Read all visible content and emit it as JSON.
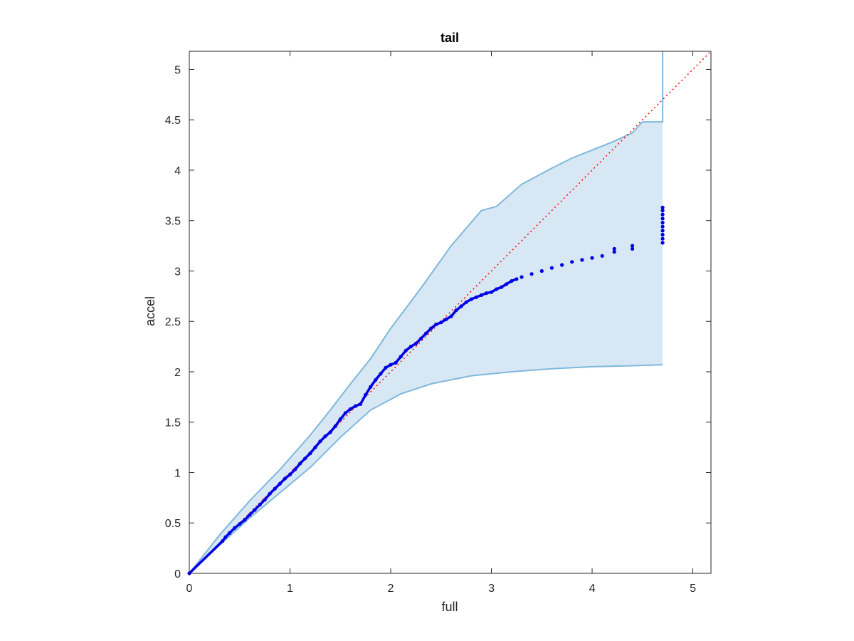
{
  "chart_data": {
    "type": "scatter",
    "title": "tail",
    "xlabel": "full",
    "ylabel": "accel",
    "xlim": [
      0,
      5.18
    ],
    "ylim": [
      0,
      5.18
    ],
    "xticks": [
      0,
      1,
      2,
      3,
      4,
      5
    ],
    "xtick_labels": [
      "0",
      "1",
      "2",
      "3",
      "4",
      "5"
    ],
    "yticks": [
      0,
      0.5,
      1,
      1.5,
      2,
      2.5,
      3,
      3.5,
      4,
      4.5,
      5
    ],
    "ytick_labels": [
      "0",
      "0.5",
      "1",
      "1.5",
      "2",
      "2.5",
      "3",
      "3.5",
      "4",
      "4.5",
      "5"
    ],
    "grid": false,
    "colors": {
      "points": "#0000e6",
      "band_fill": "#d7e8f4",
      "band_line": "#7fb8dc",
      "reference": "#ff0000",
      "axes": "#262626"
    },
    "reference_line": {
      "style": "dotted",
      "from": [
        0,
        0
      ],
      "to": [
        5.18,
        5.18
      ]
    },
    "band_upper": [
      [
        0,
        0
      ],
      [
        0.3,
        0.38
      ],
      [
        0.6,
        0.72
      ],
      [
        0.9,
        1.03
      ],
      [
        1.2,
        1.37
      ],
      [
        1.4,
        1.62
      ],
      [
        1.6,
        1.88
      ],
      [
        1.8,
        2.13
      ],
      [
        2.0,
        2.43
      ],
      [
        2.3,
        2.83
      ],
      [
        2.6,
        3.25
      ],
      [
        2.9,
        3.6
      ],
      [
        3.05,
        3.64
      ],
      [
        3.3,
        3.86
      ],
      [
        3.6,
        4.02
      ],
      [
        3.8,
        4.12
      ],
      [
        4.0,
        4.2
      ],
      [
        4.2,
        4.28
      ],
      [
        4.4,
        4.37
      ],
      [
        4.5,
        4.48
      ],
      [
        4.7,
        4.48
      ],
      [
        4.7,
        5.18
      ]
    ],
    "band_lower": [
      [
        0,
        0
      ],
      [
        0.3,
        0.28
      ],
      [
        0.6,
        0.55
      ],
      [
        0.9,
        0.8
      ],
      [
        1.2,
        1.05
      ],
      [
        1.5,
        1.35
      ],
      [
        1.8,
        1.62
      ],
      [
        2.1,
        1.78
      ],
      [
        2.4,
        1.88
      ],
      [
        2.8,
        1.96
      ],
      [
        3.2,
        2.0
      ],
      [
        3.6,
        2.03
      ],
      [
        4.0,
        2.05
      ],
      [
        4.4,
        2.06
      ],
      [
        4.7,
        2.07
      ]
    ],
    "series": [
      {
        "values": [
          [
            0.0,
            0.0
          ],
          [
            0.33,
            0.32
          ],
          [
            0.36,
            0.36
          ],
          [
            0.4,
            0.4
          ],
          [
            0.45,
            0.45
          ],
          [
            0.5,
            0.49
          ],
          [
            0.55,
            0.53
          ],
          [
            0.6,
            0.58
          ],
          [
            0.65,
            0.63
          ],
          [
            0.7,
            0.68
          ],
          [
            0.75,
            0.73
          ],
          [
            0.8,
            0.79
          ],
          [
            0.85,
            0.84
          ],
          [
            0.9,
            0.89
          ],
          [
            0.95,
            0.94
          ],
          [
            1.0,
            0.98
          ],
          [
            1.05,
            1.03
          ],
          [
            1.1,
            1.09
          ],
          [
            1.15,
            1.14
          ],
          [
            1.2,
            1.19
          ],
          [
            1.25,
            1.25
          ],
          [
            1.3,
            1.31
          ],
          [
            1.35,
            1.36
          ],
          [
            1.4,
            1.4
          ],
          [
            1.45,
            1.46
          ],
          [
            1.5,
            1.53
          ],
          [
            1.55,
            1.59
          ],
          [
            1.6,
            1.63
          ],
          [
            1.65,
            1.66
          ],
          [
            1.7,
            1.68
          ],
          [
            1.75,
            1.77
          ],
          [
            1.8,
            1.85
          ],
          [
            1.85,
            1.92
          ],
          [
            1.9,
            1.98
          ],
          [
            1.95,
            2.04
          ],
          [
            2.0,
            2.07
          ],
          [
            2.05,
            2.09
          ],
          [
            2.1,
            2.15
          ],
          [
            2.15,
            2.21
          ],
          [
            2.2,
            2.25
          ],
          [
            2.25,
            2.28
          ],
          [
            2.3,
            2.33
          ],
          [
            2.35,
            2.38
          ],
          [
            2.4,
            2.43
          ],
          [
            2.45,
            2.47
          ],
          [
            2.5,
            2.49
          ],
          [
            2.55,
            2.52
          ],
          [
            2.6,
            2.55
          ],
          [
            2.65,
            2.61
          ],
          [
            2.7,
            2.65
          ],
          [
            2.75,
            2.69
          ],
          [
            2.8,
            2.72
          ],
          [
            2.85,
            2.74
          ],
          [
            2.9,
            2.76
          ],
          [
            2.95,
            2.78
          ],
          [
            3.0,
            2.79
          ],
          [
            3.05,
            2.82
          ],
          [
            3.1,
            2.84
          ],
          [
            3.15,
            2.87
          ],
          [
            3.2,
            2.9
          ],
          [
            3.25,
            2.92
          ],
          [
            3.3,
            2.94
          ],
          [
            3.4,
            2.97
          ],
          [
            3.5,
            3.0
          ],
          [
            3.6,
            3.03
          ],
          [
            3.7,
            3.06
          ],
          [
            3.8,
            3.09
          ],
          [
            3.9,
            3.11
          ],
          [
            4.0,
            3.13
          ],
          [
            4.1,
            3.15
          ],
          [
            4.22,
            3.19
          ],
          [
            4.22,
            3.22
          ],
          [
            4.4,
            3.22
          ],
          [
            4.4,
            3.25
          ],
          [
            4.7,
            3.28
          ],
          [
            4.7,
            3.32
          ],
          [
            4.7,
            3.36
          ],
          [
            4.7,
            3.4
          ],
          [
            4.7,
            3.44
          ],
          [
            4.7,
            3.48
          ],
          [
            4.7,
            3.52
          ],
          [
            4.7,
            3.56
          ],
          [
            4.7,
            3.6
          ],
          [
            4.7,
            3.63
          ]
        ]
      }
    ]
  }
}
